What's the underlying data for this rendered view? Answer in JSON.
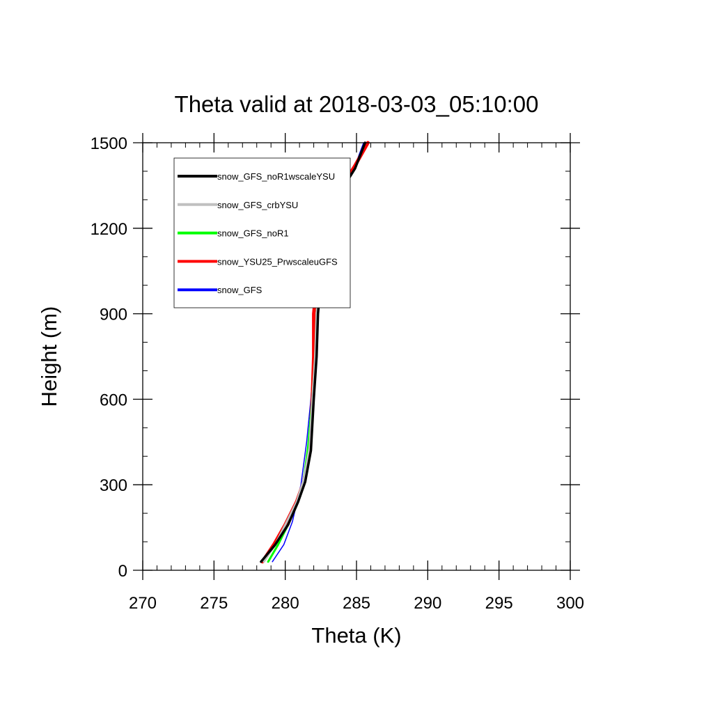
{
  "chart_data": {
    "type": "line",
    "title": "Theta valid at 2018-03-03_05:10:00",
    "xlabel": "Theta (K)",
    "ylabel": "Height (m)",
    "xlim": [
      270,
      300
    ],
    "ylim": [
      0,
      1500
    ],
    "xticks": [
      270,
      275,
      280,
      285,
      290,
      295,
      300
    ],
    "yticks": [
      0,
      300,
      600,
      900,
      1200,
      1500
    ],
    "xtick_labels": [
      "270",
      "275",
      "280",
      "285",
      "290",
      "295",
      "300"
    ],
    "ytick_labels": [
      "0",
      "300",
      "600",
      "900",
      "1200",
      "1500"
    ],
    "x_minor_step": 1,
    "y_minor_step": 100,
    "grid": false,
    "legend_position": "top-left",
    "series": [
      {
        "name": "snow_GFS",
        "color": "#0000ff",
        "points": [
          [
            279.1,
            30
          ],
          [
            279.9,
            90
          ],
          [
            280.5,
            170
          ],
          [
            281.1,
            300
          ],
          [
            281.5,
            450
          ],
          [
            281.8,
            600
          ],
          [
            282.0,
            750
          ],
          [
            282.2,
            900
          ],
          [
            282.8,
            1120
          ],
          [
            283.4,
            1300
          ],
          [
            284.9,
            1420
          ],
          [
            285.5,
            1500
          ]
        ]
      },
      {
        "name": "snow_YSU25_PrwscaleuGFS",
        "color": "#ff0000",
        "points": [
          [
            278.4,
            30
          ],
          [
            279.2,
            90
          ],
          [
            280.0,
            160
          ],
          [
            280.8,
            240
          ],
          [
            281.3,
            310
          ],
          [
            281.7,
            420
          ],
          [
            281.9,
            600
          ],
          [
            282.0,
            750
          ],
          [
            282.0,
            900
          ],
          [
            282.3,
            1050
          ],
          [
            282.6,
            1190
          ],
          [
            283.3,
            1290
          ],
          [
            284.9,
            1420
          ],
          [
            285.8,
            1500
          ]
        ]
      },
      {
        "name": "snow_GFS_noR1",
        "color": "#00ff00",
        "points": [
          [
            278.8,
            30
          ],
          [
            279.5,
            90
          ],
          [
            280.2,
            160
          ],
          [
            280.9,
            240
          ],
          [
            281.3,
            320
          ],
          [
            281.6,
            430
          ],
          [
            281.9,
            600
          ],
          [
            282.1,
            750
          ],
          [
            282.2,
            900
          ],
          [
            282.5,
            1050
          ],
          [
            282.8,
            1150
          ],
          [
            283.4,
            1290
          ],
          [
            284.9,
            1410
          ],
          [
            285.6,
            1500
          ]
        ]
      },
      {
        "name": "snow_GFS_crbYSU",
        "color": "#c0c0c0",
        "points": [
          [
            278.5,
            30
          ],
          [
            279.3,
            90
          ],
          [
            280.0,
            160
          ],
          [
            280.8,
            240
          ],
          [
            281.3,
            320
          ],
          [
            281.7,
            430
          ],
          [
            281.9,
            600
          ],
          [
            282.1,
            750
          ],
          [
            282.2,
            900
          ],
          [
            282.5,
            1050
          ],
          [
            282.9,
            1180
          ],
          [
            283.4,
            1290
          ],
          [
            284.9,
            1410
          ],
          [
            285.6,
            1500
          ]
        ]
      },
      {
        "name": "snow_GFS_noR1wscaleYSU",
        "color": "#000000",
        "points": [
          [
            278.3,
            30
          ],
          [
            279.3,
            90
          ],
          [
            280.2,
            160
          ],
          [
            280.9,
            240
          ],
          [
            281.4,
            310
          ],
          [
            281.8,
            420
          ],
          [
            282.0,
            600
          ],
          [
            282.2,
            750
          ],
          [
            282.3,
            900
          ],
          [
            282.5,
            1020
          ],
          [
            282.8,
            1110
          ],
          [
            283.0,
            1200
          ],
          [
            283.4,
            1290
          ],
          [
            284.9,
            1410
          ],
          [
            285.6,
            1500
          ]
        ]
      }
    ],
    "legend": [
      {
        "label": "snow_GFS_noR1wscaleYSU",
        "color": "#000000"
      },
      {
        "label": "snow_GFS_crbYSU",
        "color": "#c0c0c0"
      },
      {
        "label": "snow_GFS_noR1",
        "color": "#00ff00"
      },
      {
        "label": "snow_YSU25_PrwscaleuGFS",
        "color": "#ff0000"
      },
      {
        "label": "snow_GFS",
        "color": "#0000ff"
      }
    ]
  }
}
